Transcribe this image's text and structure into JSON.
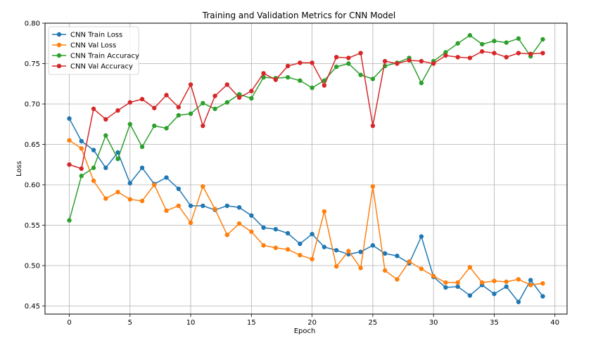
{
  "chart_data": {
    "type": "line",
    "title": "Training and Validation Metrics for CNN Model",
    "xlabel": "Epoch",
    "ylabel": "Loss",
    "xlim": [
      -2,
      41
    ],
    "ylim": [
      0.44,
      0.8
    ],
    "xticks": [
      0,
      5,
      10,
      15,
      20,
      25,
      30,
      35,
      40
    ],
    "yticks": [
      0.45,
      0.5,
      0.55,
      0.6,
      0.65,
      0.7,
      0.75,
      0.8
    ],
    "grid": true,
    "legend_position": "top-left",
    "x": [
      0,
      1,
      2,
      3,
      4,
      5,
      6,
      7,
      8,
      9,
      10,
      11,
      12,
      13,
      14,
      15,
      16,
      17,
      18,
      19,
      20,
      21,
      22,
      23,
      24,
      25,
      26,
      27,
      28,
      29,
      30,
      31,
      32,
      33,
      34,
      35,
      36,
      37,
      38,
      39
    ],
    "series": [
      {
        "name": "CNN Train Loss",
        "color": "#1f77b4",
        "values": [
          0.682,
          0.654,
          0.643,
          0.621,
          0.64,
          0.602,
          0.621,
          0.601,
          0.609,
          0.595,
          0.574,
          0.574,
          0.569,
          0.574,
          0.572,
          0.562,
          0.547,
          0.545,
          0.54,
          0.527,
          0.539,
          0.523,
          0.519,
          0.514,
          0.517,
          0.525,
          0.515,
          0.512,
          0.503,
          0.536,
          0.486,
          0.473,
          0.474,
          0.463,
          0.476,
          0.465,
          0.474,
          0.455,
          0.482,
          0.462
        ]
      },
      {
        "name": "CNN Val Loss",
        "color": "#ff7f0e",
        "values": [
          0.655,
          0.645,
          0.605,
          0.583,
          0.591,
          0.582,
          0.58,
          0.6,
          0.568,
          0.574,
          0.553,
          0.598,
          0.57,
          0.538,
          0.552,
          0.542,
          0.525,
          0.522,
          0.52,
          0.513,
          0.508,
          0.567,
          0.499,
          0.518,
          0.497,
          0.598,
          0.494,
          0.483,
          0.505,
          0.496,
          0.487,
          0.479,
          0.479,
          0.498,
          0.479,
          0.481,
          0.48,
          0.483,
          0.476,
          0.478
        ]
      },
      {
        "name": "CNN Train Accuracy",
        "color": "#2ca02c",
        "values": [
          0.556,
          0.611,
          0.621,
          0.661,
          0.632,
          0.675,
          0.647,
          0.673,
          0.67,
          0.686,
          0.688,
          0.701,
          0.694,
          0.702,
          0.712,
          0.707,
          0.733,
          0.732,
          0.733,
          0.729,
          0.72,
          0.729,
          0.746,
          0.75,
          0.736,
          0.731,
          0.747,
          0.751,
          0.757,
          0.726,
          0.753,
          0.764,
          0.775,
          0.785,
          0.774,
          0.778,
          0.776,
          0.781,
          0.759,
          0.78
        ]
      },
      {
        "name": "CNN Val Accuracy",
        "color": "#d62728",
        "values": [
          0.625,
          0.62,
          0.694,
          0.681,
          0.692,
          0.702,
          0.706,
          0.695,
          0.711,
          0.696,
          0.724,
          0.673,
          0.71,
          0.724,
          0.708,
          0.716,
          0.738,
          0.73,
          0.747,
          0.751,
          0.751,
          0.723,
          0.758,
          0.757,
          0.763,
          0.673,
          0.753,
          0.75,
          0.754,
          0.753,
          0.75,
          0.76,
          0.758,
          0.757,
          0.765,
          0.763,
          0.758,
          0.763,
          0.762,
          0.763
        ]
      }
    ]
  }
}
